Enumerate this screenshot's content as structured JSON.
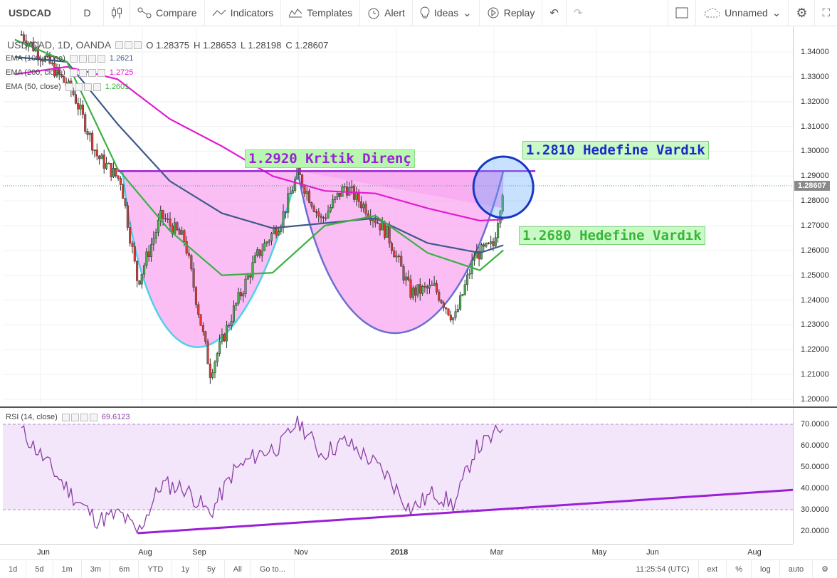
{
  "toolbar": {
    "symbol": "USDCAD",
    "interval": "D",
    "compare": "Compare",
    "indicators": "Indicators",
    "templates": "Templates",
    "alert": "Alert",
    "ideas": "Ideas",
    "replay": "Replay",
    "layout_name": "Unnamed"
  },
  "legend": {
    "title": "USD/CAD, 1D, OANDA",
    "open": "O 1.28375",
    "high": "H 1.28653",
    "low": "L 1.28198",
    "close": "C 1.28607",
    "ema100_label": "EMA (100, close)",
    "ema100_value": "1.2621",
    "ema200_label": "EMA (200, close)",
    "ema200_value": "1.2725",
    "ema50_label": "EMA (50, close)",
    "ema50_value": "1.2601",
    "rsi_label": "RSI (14, close)",
    "rsi_value": "69.6123"
  },
  "annotations": {
    "resistance": "1.2920 Kritik Direnç",
    "target1": "1.2810 Hedefine Vardık",
    "target2": "1.2680 Hedefine Vardık"
  },
  "colors": {
    "ema100": "#3d5a8a",
    "ema200": "#e21bd0",
    "ema50": "#3cb043",
    "rsi_line": "#8a3fa6",
    "rsi_band": "#ecd6f7",
    "pattern_fill": "#f8a8f0",
    "resistance_line": "#9b1fd6",
    "candle_up": "#4caf50",
    "candle_down": "#e53935"
  },
  "chart_data": [
    {
      "type": "candlestick",
      "symbol": "USDCAD",
      "ylim": [
        1.195,
        1.348
      ],
      "price_ticks": [
        "1.34000",
        "1.33000",
        "1.32000",
        "1.31000",
        "1.30000",
        "1.29000",
        "1.28000",
        "1.27000",
        "1.26000",
        "1.25000",
        "1.24000",
        "1.23000",
        "1.22000",
        "1.21000",
        "1.20000"
      ],
      "current_price": "1.28607",
      "series": [
        {
          "name": "USD/CAD",
          "x": [
            "2017-05-19",
            "2017-06-05",
            "2017-06-19",
            "2017-07-03",
            "2017-07-17",
            "2017-07-27",
            "2017-08-10",
            "2017-08-24",
            "2017-09-08",
            "2017-09-22",
            "2017-10-06",
            "2017-10-20",
            "2017-10-30",
            "2017-11-13",
            "2017-11-27",
            "2017-12-11",
            "2017-12-22",
            "2018-01-05",
            "2018-01-19",
            "2018-01-31",
            "2018-02-12",
            "2018-02-23",
            "2018-03-01"
          ],
          "values": [
            1.347,
            1.335,
            1.323,
            1.298,
            1.288,
            1.247,
            1.274,
            1.264,
            1.211,
            1.236,
            1.258,
            1.272,
            1.291,
            1.272,
            1.286,
            1.276,
            1.267,
            1.243,
            1.245,
            1.232,
            1.258,
            1.262,
            1.286
          ]
        },
        {
          "name": "EMA (100, close)",
          "x": [
            "2017-05-15",
            "2017-06-15",
            "2017-07-15",
            "2017-08-15",
            "2017-09-15",
            "2017-10-15",
            "2017-11-15",
            "2017-12-15",
            "2018-01-15",
            "2018-02-15",
            "2018-03-01"
          ],
          "values": [
            1.338,
            1.336,
            1.311,
            1.288,
            1.275,
            1.269,
            1.271,
            1.273,
            1.263,
            1.259,
            1.2621
          ]
        },
        {
          "name": "EMA (200, close)",
          "x": [
            "2017-05-15",
            "2017-06-15",
            "2017-07-15",
            "2017-08-15",
            "2017-09-15",
            "2017-10-15",
            "2017-11-15",
            "2017-12-15",
            "2018-01-15",
            "2018-02-15",
            "2018-03-01"
          ],
          "values": [
            1.331,
            1.334,
            1.329,
            1.313,
            1.302,
            1.29,
            1.284,
            1.283,
            1.277,
            1.272,
            1.2725
          ]
        },
        {
          "name": "EMA (50, close)",
          "x": [
            "2017-05-15",
            "2017-06-15",
            "2017-07-15",
            "2017-08-15",
            "2017-09-15",
            "2017-10-15",
            "2017-11-15",
            "2017-12-15",
            "2018-01-15",
            "2018-02-15",
            "2018-03-01"
          ],
          "values": [
            1.345,
            1.336,
            1.293,
            1.268,
            1.25,
            1.251,
            1.27,
            1.274,
            1.259,
            1.252,
            1.2601
          ]
        }
      ],
      "resistance_level": 1.292,
      "time_ticks": [
        "Jun",
        "Aug",
        "Sep",
        "Nov",
        "2018",
        "Mar",
        "May",
        "Jun",
        "Aug"
      ]
    },
    {
      "type": "line",
      "title": "RSI (14, close)",
      "ylim": [
        15,
        75
      ],
      "band": [
        30,
        70
      ],
      "y_ticks": [
        "70.0000",
        "60.0000",
        "50.0000",
        "40.0000",
        "30.0000",
        "20.0000"
      ],
      "current_value": "69.6123",
      "series": [
        {
          "name": "RSI (14, close)",
          "x": [
            "2017-05-19",
            "2017-06-05",
            "2017-06-19",
            "2017-07-03",
            "2017-07-17",
            "2017-07-27",
            "2017-08-10",
            "2017-08-24",
            "2017-09-08",
            "2017-09-22",
            "2017-10-06",
            "2017-10-20",
            "2017-10-30",
            "2017-11-13",
            "2017-11-27",
            "2017-12-11",
            "2017-12-22",
            "2018-01-05",
            "2018-01-19",
            "2018-01-31",
            "2018-02-12",
            "2018-02-23",
            "2018-03-01"
          ],
          "values": [
            67,
            50,
            36,
            25,
            28,
            19,
            42,
            40,
            28,
            48,
            56,
            60,
            72,
            56,
            62,
            54,
            46,
            30,
            38,
            32,
            58,
            64,
            69.6
          ]
        }
      ]
    }
  ],
  "bottom_bar": {
    "ranges": [
      "1d",
      "5d",
      "1m",
      "3m",
      "6m",
      "YTD",
      "1y",
      "5y",
      "All"
    ],
    "goto": "Go to...",
    "clock": "11:25:54 (UTC)",
    "ext": "ext",
    "percent": "%",
    "log": "log",
    "auto": "auto"
  }
}
